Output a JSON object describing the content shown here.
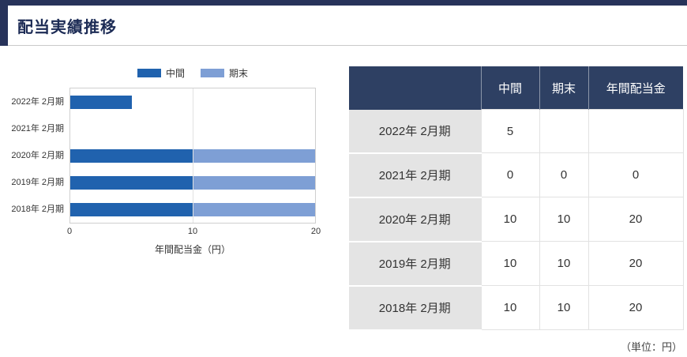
{
  "header": {
    "title": "配当実績推移"
  },
  "chart": {
    "legend": [
      {
        "label": "中間",
        "color": "#2062ae"
      },
      {
        "label": "期末",
        "color": "#7e9fd5"
      }
    ],
    "x_ticks": [
      "0",
      "10",
      "20"
    ],
    "x_title": "年間配当金（円）"
  },
  "chart_data": {
    "type": "bar",
    "orientation": "horizontal",
    "stacked": true,
    "title": "配当実績推移",
    "categories": [
      "2022年 2月期",
      "2021年 2月期",
      "2020年 2月期",
      "2019年 2月期",
      "2018年 2月期"
    ],
    "series": [
      {
        "name": "中間",
        "values": [
          5,
          0,
          10,
          10,
          10
        ]
      },
      {
        "name": "期末",
        "values": [
          0,
          0,
          10,
          10,
          10
        ]
      }
    ],
    "xlim": [
      0,
      20
    ],
    "xlabel": "年間配当金（円）",
    "legend_position": "top",
    "grid": "vertical"
  },
  "table": {
    "headers": [
      "",
      "中間",
      "期末",
      "年間配当金"
    ],
    "rows": [
      {
        "label": "2022年 2月期",
        "interim": "5",
        "yearend": "",
        "annual": ""
      },
      {
        "label": "2021年 2月期",
        "interim": "0",
        "yearend": "0",
        "annual": "0"
      },
      {
        "label": "2020年 2月期",
        "interim": "10",
        "yearend": "10",
        "annual": "20"
      },
      {
        "label": "2019年 2月期",
        "interim": "10",
        "yearend": "10",
        "annual": "20"
      },
      {
        "label": "2018年 2月期",
        "interim": "10",
        "yearend": "10",
        "annual": "20"
      }
    ],
    "unit_note": "（単位：円）"
  }
}
